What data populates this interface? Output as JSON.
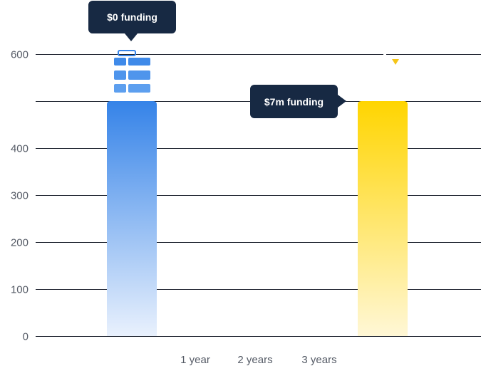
{
  "chart_data": {
    "type": "bar",
    "title": "",
    "xlabel": "",
    "ylabel": "",
    "ylim": [
      0,
      600
    ],
    "yticks": [
      {
        "value": 0,
        "label": "0"
      },
      {
        "value": 100,
        "label": "100"
      },
      {
        "value": 200,
        "label": "200"
      },
      {
        "value": 300,
        "label": "300"
      },
      {
        "value": 400,
        "label": "400"
      },
      {
        "value": 500,
        "label": ""
      },
      {
        "value": 600,
        "label": "600"
      }
    ],
    "x_tick_labels": [
      "1 year",
      "2 years",
      "3 years"
    ],
    "bars": [
      {
        "value": 500,
        "color_top": "#3583e8",
        "color_bottom": "#e9f1fd"
      },
      {
        "value": 500,
        "color_top": "#ffd500",
        "color_bottom": "#fff7d6"
      }
    ],
    "tooltips": [
      "$0 funding",
      "$7m funding"
    ],
    "icons": [
      "money-stack-icon",
      "yellow-marker-icon"
    ],
    "colors": {
      "tooltip_bg": "#172943",
      "grid": "#1f2430",
      "tick_text": "#555b66",
      "icon_blue": "#3583e8",
      "marker_yellow": "#f5c518"
    }
  }
}
